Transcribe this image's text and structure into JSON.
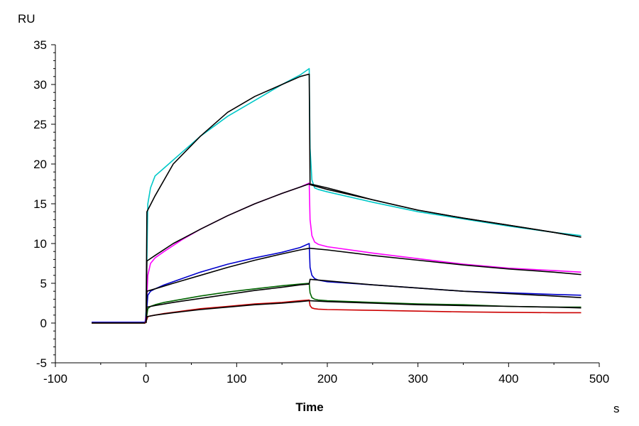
{
  "chart_data": {
    "type": "line",
    "xlabel": "Time",
    "xunit": "s",
    "ylabel": "RU",
    "xlim": [
      -100,
      500
    ],
    "ylim": [
      -5,
      35
    ],
    "xticks": [
      -100,
      0,
      100,
      200,
      300,
      400,
      500
    ],
    "yticks": [
      -5,
      0,
      5,
      10,
      15,
      20,
      25,
      30,
      35
    ],
    "grid": false,
    "legend": "none",
    "series": [
      {
        "color": "#00c8c8",
        "x": [
          -60,
          -1,
          0,
          2,
          5,
          10,
          20,
          40,
          60,
          90,
          120,
          150,
          170,
          180,
          181,
          183,
          186,
          190,
          200,
          250,
          300,
          350,
          400,
          450,
          480
        ],
        "y": [
          0.1,
          0.1,
          1.5,
          15,
          17,
          18.5,
          19.5,
          21.5,
          23.5,
          26,
          28,
          30,
          31.2,
          32,
          22,
          18,
          17,
          16.8,
          16.5,
          15.2,
          14,
          13.1,
          12.2,
          11.4,
          11.0
        ]
      },
      {
        "color": "#000000",
        "x": [
          0,
          1,
          10,
          30,
          60,
          90,
          120,
          150,
          170,
          180,
          181,
          200,
          250,
          300,
          350,
          400,
          450,
          480
        ],
        "y": [
          0,
          14,
          16,
          20,
          23.5,
          26.5,
          28.5,
          30,
          31,
          31.3,
          17.5,
          17,
          15.5,
          14.2,
          13.2,
          12.3,
          11.4,
          10.8
        ]
      },
      {
        "color": "#ff00ff",
        "x": [
          -60,
          -1,
          0,
          2,
          5,
          10,
          20,
          40,
          60,
          90,
          120,
          150,
          170,
          180,
          181,
          183,
          186,
          190,
          200,
          250,
          300,
          350,
          400,
          450,
          480
        ],
        "y": [
          0.1,
          0.1,
          1.0,
          6,
          7.5,
          8.2,
          9,
          10.5,
          11.8,
          13.5,
          15,
          16.3,
          17.1,
          17.6,
          13,
          11,
          10.2,
          9.9,
          9.6,
          8.8,
          8.1,
          7.4,
          6.9,
          6.6,
          6.4
        ]
      },
      {
        "color": "#000000",
        "x": [
          0,
          1,
          10,
          30,
          60,
          90,
          120,
          150,
          170,
          180,
          181,
          200,
          250,
          300,
          350,
          400,
          450,
          480
        ],
        "y": [
          0,
          7.8,
          8.5,
          10,
          11.8,
          13.5,
          15,
          16.3,
          17.1,
          17.5,
          17.4,
          16.8,
          15.5,
          14.2,
          13.2,
          12.3,
          11.4,
          10.8
        ]
      },
      {
        "color": "#0000cc",
        "x": [
          -60,
          -1,
          0,
          2,
          5,
          10,
          20,
          40,
          60,
          90,
          120,
          150,
          170,
          180,
          181,
          183,
          186,
          190,
          200,
          250,
          300,
          350,
          400,
          450,
          480
        ],
        "y": [
          0.1,
          0.1,
          0.5,
          3.5,
          4.0,
          4.3,
          4.8,
          5.6,
          6.4,
          7.4,
          8.2,
          8.9,
          9.5,
          10.0,
          7,
          6,
          5.6,
          5.4,
          5.2,
          4.8,
          4.4,
          4.0,
          3.8,
          3.6,
          3.5
        ]
      },
      {
        "color": "#000000",
        "x": [
          0,
          1,
          10,
          30,
          60,
          90,
          120,
          150,
          170,
          180,
          181,
          200,
          250,
          300,
          350,
          400,
          450,
          480
        ],
        "y": [
          0,
          4.0,
          4.3,
          5.0,
          6.0,
          7.0,
          7.9,
          8.7,
          9.2,
          9.4,
          9.4,
          9.2,
          8.5,
          7.9,
          7.3,
          6.8,
          6.4,
          6.1
        ]
      },
      {
        "color": "#006400",
        "x": [
          -60,
          -1,
          0,
          2,
          5,
          10,
          20,
          40,
          60,
          90,
          120,
          150,
          170,
          180,
          181,
          183,
          186,
          190,
          200,
          250,
          300,
          350,
          400,
          450,
          480
        ],
        "y": [
          0.0,
          0.0,
          0.3,
          1.8,
          2.1,
          2.3,
          2.6,
          3.0,
          3.4,
          3.9,
          4.3,
          4.7,
          4.9,
          5.0,
          3.8,
          3.2,
          3.0,
          2.9,
          2.8,
          2.6,
          2.4,
          2.3,
          2.1,
          2.0,
          2.0
        ]
      },
      {
        "color": "#000000",
        "x": [
          0,
          1,
          10,
          30,
          60,
          90,
          120,
          150,
          170,
          180,
          181,
          200,
          250,
          300,
          350,
          400,
          450,
          480
        ],
        "y": [
          0,
          2.0,
          2.2,
          2.6,
          3.1,
          3.6,
          4.1,
          4.5,
          4.8,
          4.9,
          5.5,
          5.3,
          4.8,
          4.4,
          4.0,
          3.7,
          3.4,
          3.2
        ]
      },
      {
        "color": "#cc0000",
        "x": [
          -60,
          -1,
          0,
          2,
          5,
          10,
          20,
          40,
          60,
          90,
          120,
          150,
          170,
          180,
          181,
          183,
          186,
          190,
          200,
          250,
          300,
          350,
          400,
          450,
          480
        ],
        "y": [
          0.0,
          0.0,
          0.2,
          0.8,
          0.9,
          1.0,
          1.2,
          1.5,
          1.8,
          2.1,
          2.4,
          2.6,
          2.8,
          2.9,
          2.2,
          1.9,
          1.8,
          1.75,
          1.7,
          1.6,
          1.5,
          1.4,
          1.35,
          1.3,
          1.3
        ]
      },
      {
        "color": "#000000",
        "x": [
          0,
          1,
          10,
          30,
          60,
          90,
          120,
          150,
          170,
          180,
          181,
          200,
          250,
          300,
          350,
          400,
          450,
          480
        ],
        "y": [
          0,
          0.8,
          1.0,
          1.3,
          1.7,
          2.0,
          2.3,
          2.5,
          2.7,
          2.8,
          2.8,
          2.7,
          2.5,
          2.3,
          2.2,
          2.1,
          2.0,
          1.9
        ]
      },
      {
        "color": "#000000",
        "x": [
          -60,
          -1
        ],
        "y": [
          0.0,
          0.0
        ]
      }
    ]
  }
}
